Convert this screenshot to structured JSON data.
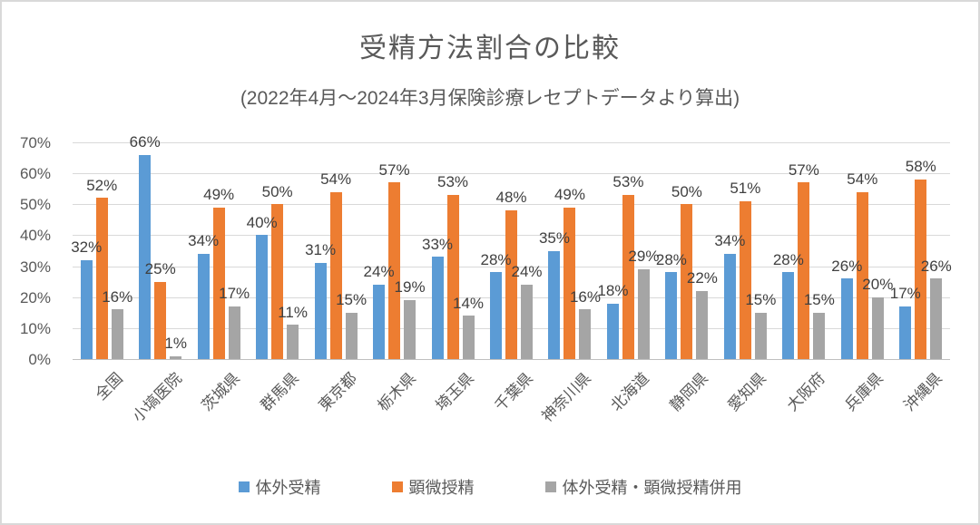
{
  "chart_data": {
    "type": "bar",
    "title": "受精方法割合の比較",
    "subtitle": "(2022年4月～2024年3月保険診療レセプトデータより算出)",
    "categories": [
      "全国",
      "小塙医院",
      "茨城県",
      "群馬県",
      "東京都",
      "栃木県",
      "埼玉県",
      "千葉県",
      "神奈川県",
      "北海道",
      "静岡県",
      "愛知県",
      "大阪府",
      "兵庫県",
      "沖縄県"
    ],
    "series": [
      {
        "name": "体外受精",
        "color": "#5B9BD5",
        "values": [
          32,
          66,
          34,
          40,
          31,
          24,
          33,
          28,
          35,
          18,
          28,
          34,
          28,
          26,
          17
        ]
      },
      {
        "name": "顕微授精",
        "color": "#ED7D31",
        "values": [
          52,
          25,
          49,
          50,
          54,
          57,
          53,
          48,
          49,
          53,
          50,
          51,
          57,
          54,
          58
        ]
      },
      {
        "name": "体外受精・顕微授精併用",
        "color": "#A5A5A5",
        "values": [
          16,
          1,
          17,
          11,
          15,
          19,
          14,
          24,
          16,
          29,
          22,
          15,
          15,
          20,
          26
        ]
      }
    ],
    "ylim": [
      0,
      70
    ],
    "ytick_step": 10,
    "ytick_labels": [
      "0%",
      "10%",
      "20%",
      "30%",
      "40%",
      "50%",
      "60%",
      "70%"
    ],
    "data_label_suffix": "%",
    "grid": true,
    "legend_position": "bottom",
    "colors": {
      "grid": "#D9D9D9",
      "axis_line": "#BFBFBF",
      "text_muted": "#595959",
      "data_label": "#404040",
      "border": "#D9D9D9"
    }
  }
}
